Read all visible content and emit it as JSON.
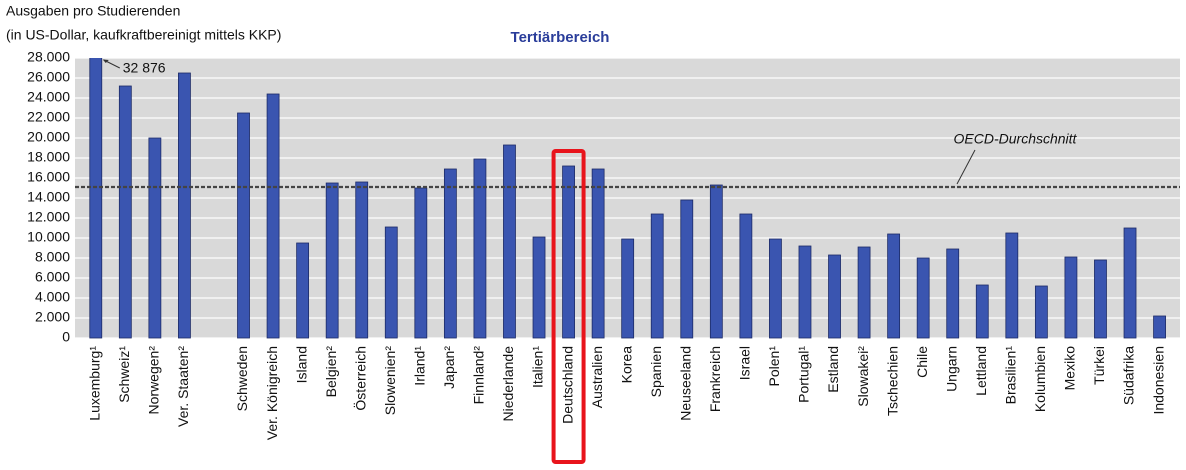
{
  "chart_data": {
    "type": "bar",
    "title": "Tertiärbereich",
    "y_label": [
      "Ausgaben pro Studierenden",
      "(in US-Dollar, kaufkraftbereinigt mittels KKP)"
    ],
    "categories": [
      "Luxemburg¹",
      "Schweiz¹",
      "Norwegen²",
      "Ver. Staaten²",
      null,
      "Schweden",
      "Ver. Königreich",
      "Island",
      "Belgien²",
      "Österreich",
      "Slowenien²",
      "Irland¹",
      "Japan²",
      "Finnland²",
      "Niederlande",
      "Italien¹",
      "Deutschland",
      "Australien",
      "Korea",
      "Spanien",
      "Neuseeland",
      "Frankreich",
      "Israel",
      "Polen¹",
      "Portugal¹",
      "Estland",
      "Slowakei²",
      "Tschechien",
      "Chile",
      "Ungarn",
      "Lettland",
      "Brasilien¹",
      "Kolumbien",
      "Mexiko",
      "Türkei",
      "Südafrika",
      "Indonesien"
    ],
    "values": [
      32876,
      25200,
      20000,
      26500,
      null,
      22500,
      24400,
      9500,
      15500,
      15600,
      11100,
      15000,
      16900,
      17900,
      19300,
      10100,
      17200,
      16900,
      9900,
      12400,
      13800,
      15300,
      12400,
      9900,
      9200,
      8300,
      9100,
      10400,
      8000,
      8900,
      5300,
      10500,
      5200,
      8100,
      7800,
      11000,
      2200
    ],
    "value_labels": [
      "32 876",
      null,
      null,
      null,
      null,
      null,
      null,
      null,
      null,
      null,
      null,
      null,
      null,
      null,
      null,
      null,
      null,
      null,
      null,
      null,
      null,
      null,
      null,
      null,
      null,
      null,
      null,
      null,
      null,
      null,
      null,
      null,
      null,
      null,
      null,
      null,
      null
    ],
    "color": "#3a55b0",
    "ylim": [
      0,
      28000
    ],
    "yticks": [
      0,
      {
        "value": 2000,
        "label": "2.000"
      },
      {
        "value": 4000,
        "label": "4.000"
      },
      {
        "value": 6000,
        "label": "6.000"
      },
      {
        "value": 8000,
        "label": "8.000"
      },
      {
        "value": 10000,
        "label": "10.000"
      },
      {
        "value": 12000,
        "label": "12.000"
      },
      {
        "value": 14000,
        "label": "14.000"
      },
      {
        "value": 16000,
        "label": "16.000"
      },
      {
        "value": 18000,
        "label": "18.000"
      },
      {
        "value": 20000,
        "label": "20.000"
      },
      {
        "value": 22000,
        "label": "22.000"
      },
      {
        "value": 24000,
        "label": "24.000"
      },
      {
        "value": 26000,
        "label": "26.000"
      },
      {
        "value": 28000,
        "label": "28.000"
      }
    ],
    "grid": true,
    "reference_line": {
      "value": 15100,
      "label": "OECD-Durchschnitt"
    },
    "highlight_index": 16,
    "highlight_color": "#e8141c"
  }
}
